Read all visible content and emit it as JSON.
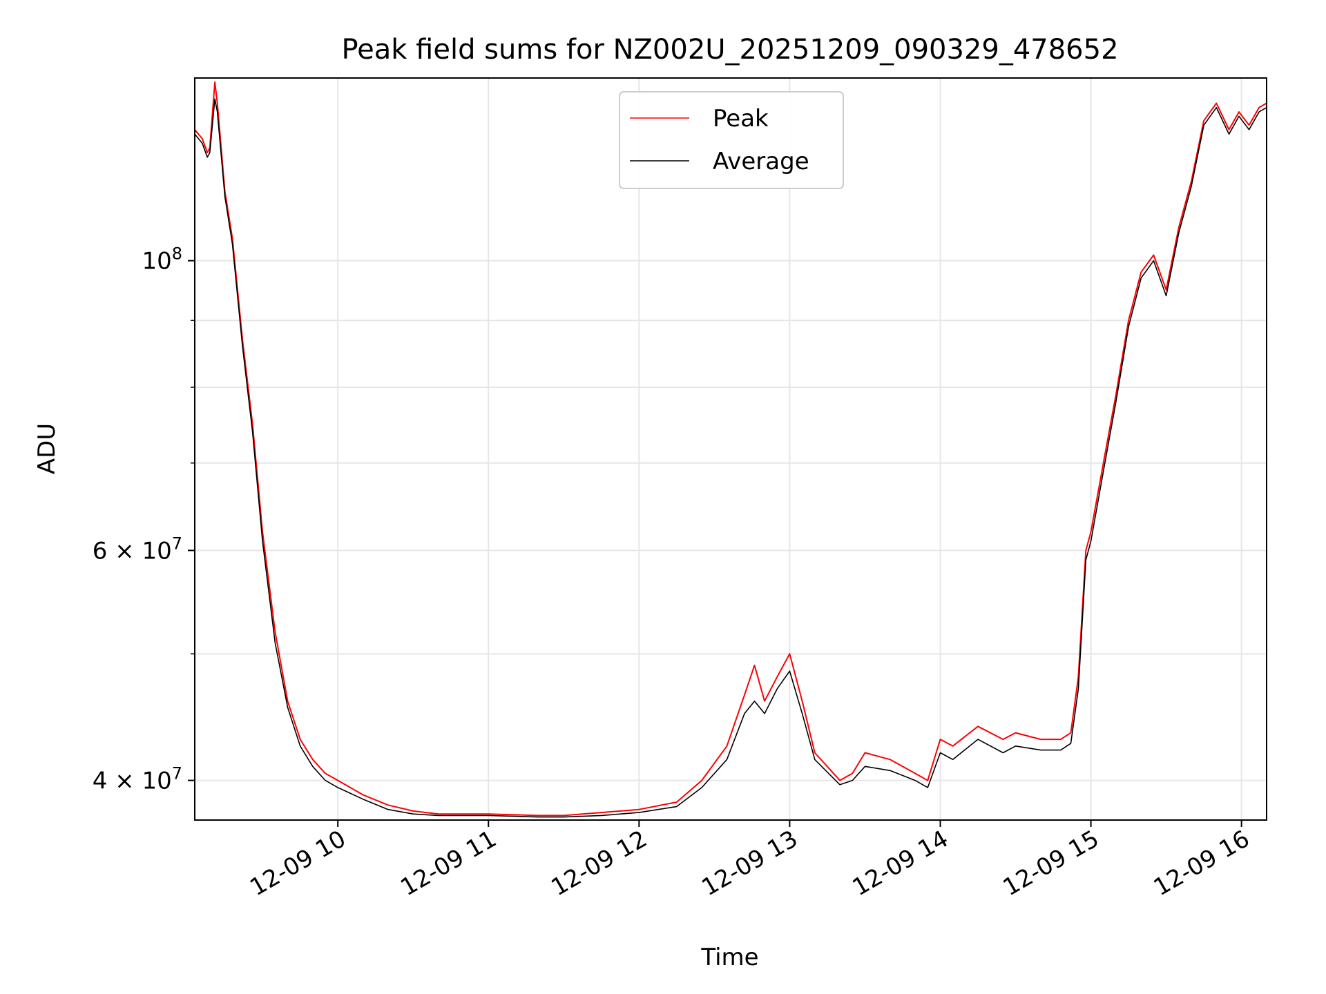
{
  "chart_data": {
    "type": "line",
    "title": "Peak field sums for NZ002U_20251209_090329_478652",
    "xlabel": "Time",
    "ylabel": "ADU",
    "xscale": "time",
    "yscale": "log",
    "xlim": [
      "2025-12-09 09:03",
      "2025-12-09 16:10"
    ],
    "ylim": [
      37300000,
      138000000
    ],
    "x_ticks": [
      {
        "value": "2025-12-09 10:00",
        "label": "12-09 10"
      },
      {
        "value": "2025-12-09 11:00",
        "label": "12-09 11"
      },
      {
        "value": "2025-12-09 12:00",
        "label": "12-09 12"
      },
      {
        "value": "2025-12-09 13:00",
        "label": "12-09 13"
      },
      {
        "value": "2025-12-09 14:00",
        "label": "12-09 14"
      },
      {
        "value": "2025-12-09 15:00",
        "label": "12-09 15"
      },
      {
        "value": "2025-12-09 16:00",
        "label": "12-09 16"
      }
    ],
    "y_ticks": [
      {
        "value": 40000000,
        "label_base": "4 × 10",
        "label_exp": "7"
      },
      {
        "value": 60000000,
        "label_base": "6 × 10",
        "label_exp": "7"
      },
      {
        "value": 100000000,
        "label_base": "10",
        "label_exp": "8"
      }
    ],
    "y_minor_ticks": [
      50000000,
      70000000,
      80000000,
      90000000
    ],
    "grid": true,
    "legend": "upper center",
    "series": [
      {
        "name": "Peak",
        "color": "#ff0000",
        "x": [
          "2025-12-09 09:03",
          "2025-12-09 09:06",
          "2025-12-09 09:08",
          "2025-12-09 09:09",
          "2025-12-09 09:11",
          "2025-12-09 09:12",
          "2025-12-09 09:15",
          "2025-12-09 09:18",
          "2025-12-09 09:22",
          "2025-12-09 09:26",
          "2025-12-09 09:30",
          "2025-12-09 09:35",
          "2025-12-09 09:40",
          "2025-12-09 09:45",
          "2025-12-09 09:50",
          "2025-12-09 09:55",
          "2025-12-09 10:00",
          "2025-12-09 10:10",
          "2025-12-09 10:20",
          "2025-12-09 10:30",
          "2025-12-09 10:40",
          "2025-12-09 11:00",
          "2025-12-09 11:20",
          "2025-12-09 11:30",
          "2025-12-09 11:45",
          "2025-12-09 12:00",
          "2025-12-09 12:15",
          "2025-12-09 12:25",
          "2025-12-09 12:35",
          "2025-12-09 12:42",
          "2025-12-09 12:46",
          "2025-12-09 12:50",
          "2025-12-09 12:55",
          "2025-12-09 13:00",
          "2025-12-09 13:05",
          "2025-12-09 13:10",
          "2025-12-09 13:20",
          "2025-12-09 13:25",
          "2025-12-09 13:30",
          "2025-12-09 13:40",
          "2025-12-09 13:50",
          "2025-12-09 13:55",
          "2025-12-09 14:00",
          "2025-12-09 14:05",
          "2025-12-09 14:15",
          "2025-12-09 14:25",
          "2025-12-09 14:30",
          "2025-12-09 14:40",
          "2025-12-09 14:48",
          "2025-12-09 14:52",
          "2025-12-09 14:55",
          "2025-12-09 14:58",
          "2025-12-09 15:00",
          "2025-12-09 15:05",
          "2025-12-09 15:10",
          "2025-12-09 15:15",
          "2025-12-09 15:20",
          "2025-12-09 15:25",
          "2025-12-09 15:30",
          "2025-12-09 15:35",
          "2025-12-09 15:40",
          "2025-12-09 15:45",
          "2025-12-09 15:50",
          "2025-12-09 15:55",
          "2025-12-09 15:59",
          "2025-12-09 16:03",
          "2025-12-09 16:07",
          "2025-12-09 16:10"
        ],
        "y": [
          126000000,
          124000000,
          121000000,
          122000000,
          137000000,
          132000000,
          113000000,
          104000000,
          87000000,
          75000000,
          62000000,
          52000000,
          46000000,
          43000000,
          41500000,
          40500000,
          40000000,
          39000000,
          38300000,
          37900000,
          37700000,
          37700000,
          37600000,
          37600000,
          37800000,
          38000000,
          38500000,
          40000000,
          42500000,
          46500000,
          49000000,
          46000000,
          48000000,
          50000000,
          46000000,
          42000000,
          40000000,
          40500000,
          42000000,
          41500000,
          40500000,
          40000000,
          43000000,
          42500000,
          44000000,
          43000000,
          43500000,
          43000000,
          43000000,
          43500000,
          48000000,
          60000000,
          62000000,
          70000000,
          79000000,
          90000000,
          98000000,
          101000000,
          95000000,
          106000000,
          115000000,
          128000000,
          132000000,
          126000000,
          130000000,
          127000000,
          131000000,
          132000000
        ]
      },
      {
        "name": "Average",
        "color": "#000000",
        "x": [
          "2025-12-09 09:03",
          "2025-12-09 09:06",
          "2025-12-09 09:08",
          "2025-12-09 09:09",
          "2025-12-09 09:11",
          "2025-12-09 09:12",
          "2025-12-09 09:15",
          "2025-12-09 09:18",
          "2025-12-09 09:22",
          "2025-12-09 09:26",
          "2025-12-09 09:30",
          "2025-12-09 09:35",
          "2025-12-09 09:40",
          "2025-12-09 09:45",
          "2025-12-09 09:50",
          "2025-12-09 09:55",
          "2025-12-09 10:00",
          "2025-12-09 10:10",
          "2025-12-09 10:20",
          "2025-12-09 10:30",
          "2025-12-09 10:40",
          "2025-12-09 11:00",
          "2025-12-09 11:20",
          "2025-12-09 11:30",
          "2025-12-09 11:45",
          "2025-12-09 12:00",
          "2025-12-09 12:15",
          "2025-12-09 12:25",
          "2025-12-09 12:35",
          "2025-12-09 12:42",
          "2025-12-09 12:46",
          "2025-12-09 12:50",
          "2025-12-09 12:55",
          "2025-12-09 13:00",
          "2025-12-09 13:05",
          "2025-12-09 13:10",
          "2025-12-09 13:20",
          "2025-12-09 13:25",
          "2025-12-09 13:30",
          "2025-12-09 13:40",
          "2025-12-09 13:50",
          "2025-12-09 13:55",
          "2025-12-09 14:00",
          "2025-12-09 14:05",
          "2025-12-09 14:15",
          "2025-12-09 14:25",
          "2025-12-09 14:30",
          "2025-12-09 14:40",
          "2025-12-09 14:48",
          "2025-12-09 14:52",
          "2025-12-09 14:55",
          "2025-12-09 14:58",
          "2025-12-09 15:00",
          "2025-12-09 15:05",
          "2025-12-09 15:10",
          "2025-12-09 15:15",
          "2025-12-09 15:20",
          "2025-12-09 15:25",
          "2025-12-09 15:30",
          "2025-12-09 15:35",
          "2025-12-09 15:40",
          "2025-12-09 15:45",
          "2025-12-09 15:50",
          "2025-12-09 15:55",
          "2025-12-09 15:59",
          "2025-12-09 16:03",
          "2025-12-09 16:07",
          "2025-12-09 16:10"
        ],
        "y": [
          125000000,
          123000000,
          120000000,
          121000000,
          133000000,
          130000000,
          112000000,
          103000000,
          86000000,
          74000000,
          61000000,
          51000000,
          45500000,
          42500000,
          41000000,
          40000000,
          39500000,
          38700000,
          38000000,
          37700000,
          37600000,
          37600000,
          37500000,
          37500000,
          37600000,
          37800000,
          38200000,
          39500000,
          41500000,
          45000000,
          46000000,
          45000000,
          47000000,
          48500000,
          45000000,
          41500000,
          39700000,
          40000000,
          41000000,
          40700000,
          40000000,
          39500000,
          42000000,
          41500000,
          43000000,
          42000000,
          42500000,
          42200000,
          42200000,
          42700000,
          47000000,
          59000000,
          61000000,
          69000000,
          78000000,
          89000000,
          97000000,
          100000000,
          94000000,
          105000000,
          114000000,
          127000000,
          131000000,
          125000000,
          129000000,
          126000000,
          130000000,
          131000000
        ]
      }
    ]
  }
}
